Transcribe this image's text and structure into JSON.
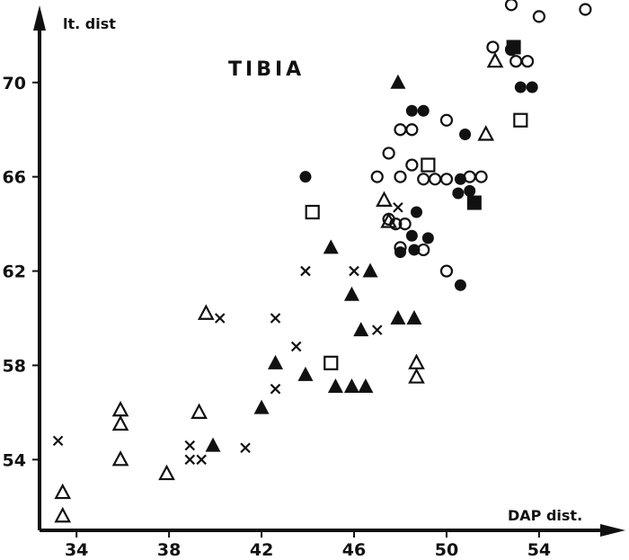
{
  "chart_data": {
    "type": "scatter",
    "title": "TIBIA",
    "xlabel": "DAP dist.",
    "ylabel": "lt. dist",
    "xlim": [
      32.4,
      57.5
    ],
    "ylim": [
      51.0,
      73.5
    ],
    "xticks": [
      34,
      38,
      42,
      46,
      50,
      54
    ],
    "yticks": [
      54,
      58,
      62,
      66,
      70
    ],
    "grid": false,
    "legend": "none",
    "color": "#111111",
    "series": [
      {
        "marker": "circle-open",
        "points": [
          [
            52.8,
            73.3
          ],
          [
            54,
            72.8
          ],
          [
            56,
            73.1
          ],
          [
            52,
            71.5
          ],
          [
            52.8,
            71.4
          ],
          [
            53,
            70.9
          ],
          [
            53.5,
            70.9
          ],
          [
            48,
            68
          ],
          [
            48.5,
            68
          ],
          [
            50,
            68.4
          ],
          [
            47.5,
            67
          ],
          [
            48.5,
            66.5
          ],
          [
            48,
            66
          ],
          [
            47,
            66
          ],
          [
            49,
            65.9
          ],
          [
            49.5,
            65.9
          ],
          [
            50,
            65.9
          ],
          [
            51,
            66
          ],
          [
            51.5,
            66
          ],
          [
            47.8,
            64
          ],
          [
            48.2,
            64
          ],
          [
            48,
            63
          ],
          [
            49,
            62.9
          ],
          [
            50,
            62
          ],
          [
            47.5,
            64.2
          ]
        ]
      },
      {
        "marker": "circle-filled",
        "points": [
          [
            43.9,
            66
          ],
          [
            48.5,
            68.8
          ],
          [
            49,
            68.8
          ],
          [
            50.8,
            67.8
          ],
          [
            53.2,
            69.8
          ],
          [
            53.7,
            69.8
          ],
          [
            50.5,
            65.3
          ],
          [
            51,
            65.4
          ],
          [
            50.6,
            65.9
          ],
          [
            48.7,
            64.5
          ],
          [
            48.5,
            63.5
          ],
          [
            49.2,
            63.4
          ],
          [
            48,
            62.8
          ],
          [
            48.6,
            62.9
          ],
          [
            50.6,
            61.4
          ]
        ]
      },
      {
        "marker": "square-open",
        "points": [
          [
            44.2,
            64.5
          ],
          [
            49.2,
            66.5
          ],
          [
            53.2,
            68.4
          ],
          [
            45,
            58.1
          ]
        ]
      },
      {
        "marker": "square-filled",
        "points": [
          [
            52.9,
            71.5
          ],
          [
            51.2,
            64.9
          ]
        ]
      },
      {
        "marker": "triangle-open",
        "points": [
          [
            33.4,
            52.6
          ],
          [
            33.4,
            51.6
          ],
          [
            35.9,
            56.1
          ],
          [
            35.9,
            55.5
          ],
          [
            35.9,
            54
          ],
          [
            37.9,
            53.4
          ],
          [
            39.3,
            56
          ],
          [
            39.6,
            60.2
          ],
          [
            47.3,
            65
          ],
          [
            47.5,
            64.1
          ],
          [
            48.7,
            58.1
          ],
          [
            48.7,
            57.5
          ],
          [
            51.7,
            67.8
          ],
          [
            52.1,
            70.9
          ]
        ]
      },
      {
        "marker": "triangle-filled",
        "points": [
          [
            39.9,
            54.6
          ],
          [
            42,
            56.2
          ],
          [
            42.6,
            58.1
          ],
          [
            43.9,
            57.6
          ],
          [
            45,
            63
          ],
          [
            45.2,
            57.1
          ],
          [
            45.9,
            57.1
          ],
          [
            46.5,
            57.1
          ],
          [
            46.7,
            62
          ],
          [
            45.9,
            61
          ],
          [
            46.3,
            59.5
          ],
          [
            47.9,
            60
          ],
          [
            48.6,
            60
          ],
          [
            47.9,
            70
          ]
        ]
      },
      {
        "marker": "cross",
        "points": [
          [
            33.2,
            54.8
          ],
          [
            38.9,
            54.6
          ],
          [
            38.9,
            54
          ],
          [
            39.4,
            54
          ],
          [
            40.2,
            60
          ],
          [
            41.3,
            54.5
          ],
          [
            42.6,
            60
          ],
          [
            42.6,
            57
          ],
          [
            43.5,
            58.8
          ],
          [
            43.9,
            62
          ],
          [
            46,
            62
          ],
          [
            47,
            59.5
          ],
          [
            47.9,
            64.7
          ]
        ]
      }
    ]
  }
}
